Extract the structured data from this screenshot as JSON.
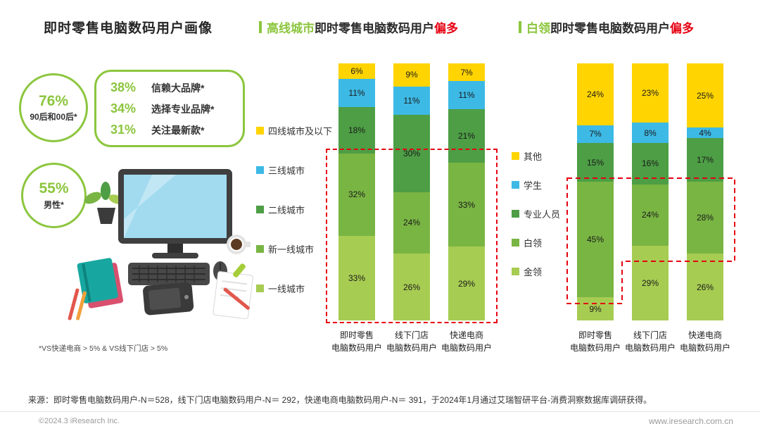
{
  "titles": {
    "left": "即时零售电脑数码用户画像",
    "middle": {
      "highlight": "高线城市",
      "rest": "即时零售电脑数码用户",
      "emphasis": "偏多"
    },
    "right": {
      "highlight": "白领",
      "rest": "即时零售电脑数码用户",
      "emphasis": "偏多"
    }
  },
  "stats": {
    "circle1": {
      "value": "76%",
      "label": "90后和00后*"
    },
    "circle2": {
      "value": "55%",
      "label": "男性*"
    },
    "box": [
      {
        "value": "38%",
        "label": "信赖大品牌*"
      },
      {
        "value": "34%",
        "label": "选择专业品牌*"
      },
      {
        "value": "31%",
        "label": "关注最新款*"
      }
    ]
  },
  "footnote": "*VS快递电商 > 5% & VS线下门店 > 5%",
  "source": "来源：即时零售电脑数码用户-N＝528，线下门店电脑数码用户-N＝ 292，快递电商电脑数码用户-N＝ 391，于2024年1月通过艾瑞智研平台-消费洞察数据库调研获得。",
  "copyright": "©2024.3 iResearch Inc.",
  "website": "www.iresearch.com.cn",
  "colors": {
    "accent_green": "#8CC63E",
    "emphasis_red": "#E60012",
    "series_yellow": "#FFD400",
    "series_blue": "#3DB9E5",
    "series_green_dark": "#4D9E45",
    "series_green_mid": "#79B543",
    "series_green_light": "#A7CC52"
  },
  "chart_data": [
    {
      "type": "bar",
      "stacked": true,
      "unit": "%",
      "title": "高线城市即时零售电脑数码用户偏多",
      "categories": [
        "即时零售\n电脑数码用户",
        "线下门店\n电脑数码用户",
        "快递电商\n电脑数码用户"
      ],
      "series": [
        {
          "name": "四线城市及以下",
          "color": "#FFD400",
          "values": [
            6,
            9,
            7
          ]
        },
        {
          "name": "三线城市",
          "color": "#3DB9E5",
          "values": [
            11,
            11,
            11
          ]
        },
        {
          "name": "二线城市",
          "color": "#4D9E45",
          "values": [
            18,
            30,
            21
          ]
        },
        {
          "name": "新一线城市",
          "color": "#79B543",
          "values": [
            32,
            24,
            33
          ]
        },
        {
          "name": "一线城市",
          "color": "#A7CC52",
          "values": [
            33,
            26,
            29
          ]
        }
      ],
      "ylim": [
        0,
        100
      ],
      "grid": false,
      "legend_position": "left",
      "highlight_box": {
        "style": "dashed",
        "color": "#E60012"
      }
    },
    {
      "type": "bar",
      "stacked": true,
      "unit": "%",
      "title": "白领即时零售电脑数码用户偏多",
      "categories": [
        "即时零售\n电脑数码用户",
        "线下门店\n电脑数码用户",
        "快递电商\n电脑数码用户"
      ],
      "series": [
        {
          "name": "其他",
          "color": "#FFD400",
          "values": [
            24,
            23,
            25
          ]
        },
        {
          "name": "学生",
          "color": "#3DB9E5",
          "values": [
            7,
            8,
            4
          ]
        },
        {
          "name": "专业人员",
          "color": "#4D9E45",
          "values": [
            15,
            16,
            17
          ]
        },
        {
          "name": "白领",
          "color": "#79B543",
          "values": [
            45,
            24,
            28
          ]
        },
        {
          "name": "金领",
          "color": "#A7CC52",
          "values": [
            9,
            29,
            26
          ]
        }
      ],
      "ylim": [
        0,
        100
      ],
      "grid": false,
      "legend_position": "left",
      "highlight_box": {
        "style": "dashed",
        "color": "#E60012"
      }
    }
  ]
}
